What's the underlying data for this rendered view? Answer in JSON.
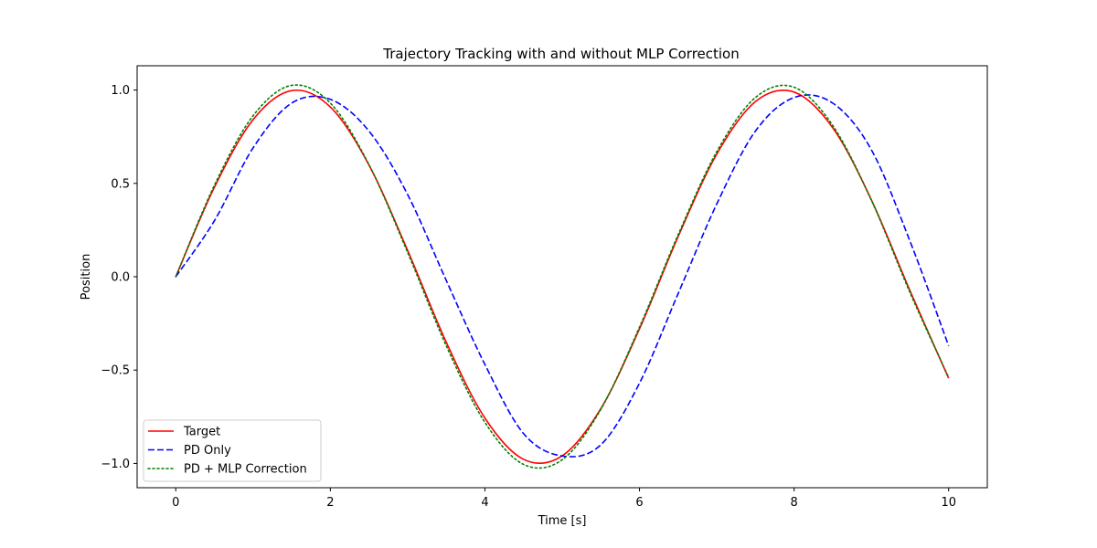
{
  "chart_data": {
    "type": "line",
    "title": "Trajectory Tracking with and without MLP Correction",
    "xlabel": "Time [s]",
    "ylabel": "Position",
    "xlim": [
      -0.5,
      10.5
    ],
    "ylim": [
      -1.13,
      1.13
    ],
    "xticks": [
      0,
      2,
      4,
      6,
      8,
      10
    ],
    "xtick_labels": [
      "0",
      "2",
      "4",
      "6",
      "8",
      "10"
    ],
    "yticks": [
      -1.0,
      -0.5,
      0.0,
      0.5,
      1.0
    ],
    "ytick_labels": [
      "−1.0",
      "−0.5",
      "0.0",
      "0.5",
      "1.0"
    ],
    "grid": false,
    "legend_position": "lower-left",
    "x": [
      0,
      0.5,
      1,
      1.5,
      2,
      2.5,
      3,
      3.5,
      4,
      4.5,
      5,
      5.5,
      6,
      6.5,
      7,
      7.5,
      8,
      8.5,
      9,
      9.5,
      10
    ],
    "series": [
      {
        "name": "Target",
        "color": "#ff0000",
        "style": "solid",
        "values": [
          0.0,
          0.479,
          0.841,
          0.997,
          0.909,
          0.598,
          0.141,
          -0.351,
          -0.757,
          -0.978,
          -0.959,
          -0.706,
          -0.279,
          0.215,
          0.657,
          0.938,
          0.989,
          0.798,
          0.412,
          -0.075,
          -0.544
        ]
      },
      {
        "name": "PD Only",
        "color": "#0000ff",
        "style": "dashed",
        "values": [
          0.0,
          0.3,
          0.69,
          0.93,
          0.95,
          0.78,
          0.44,
          -0.02,
          -0.47,
          -0.84,
          -0.96,
          -0.9,
          -0.57,
          -0.09,
          0.39,
          0.78,
          0.96,
          0.93,
          0.68,
          0.19,
          -0.37
        ]
      },
      {
        "name": "PD + MLP Correction",
        "color": "#008000",
        "style": "dotted",
        "values": [
          0.0,
          0.49,
          0.862,
          1.025,
          0.93,
          0.6,
          0.13,
          -0.37,
          -0.78,
          -1.005,
          -0.98,
          -0.71,
          -0.27,
          0.225,
          0.67,
          0.96,
          1.015,
          0.81,
          0.41,
          -0.085,
          -0.54
        ]
      }
    ]
  }
}
